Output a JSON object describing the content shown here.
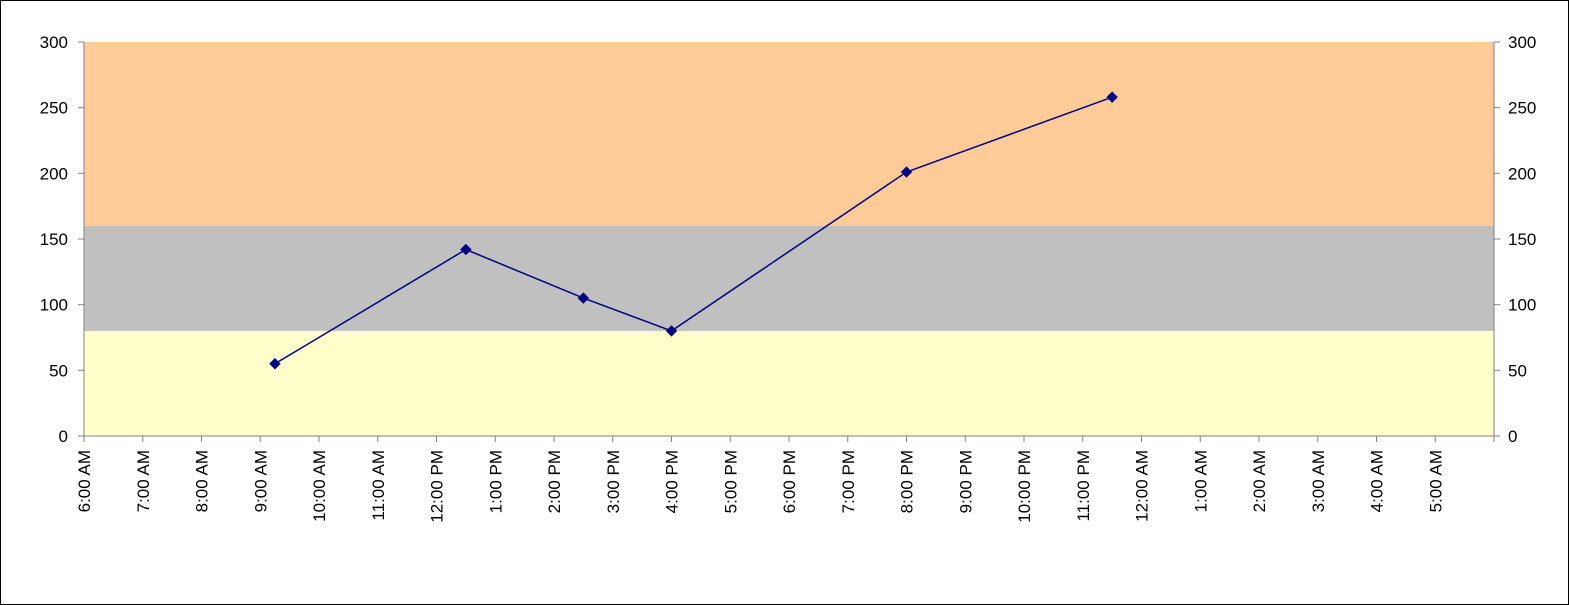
{
  "chart_data": {
    "type": "line",
    "x_ticks": [
      "6:00 AM",
      "7:00 AM",
      "8:00 AM",
      "9:00 AM",
      "10:00 AM",
      "11:00 AM",
      "12:00 PM",
      "1:00 PM",
      "2:00 PM",
      "3:00 PM",
      "4:00 PM",
      "5:00 PM",
      "6:00 PM",
      "7:00 PM",
      "8:00 PM",
      "9:00 PM",
      "10:00 PM",
      "11:00 PM",
      "12:00 AM",
      "1:00 AM",
      "2:00 AM",
      "3:00 AM",
      "4:00 AM",
      "5:00 AM"
    ],
    "xlim": [
      "6:00 AM",
      "6:00 AM (next day)"
    ],
    "ylim": [
      0,
      300
    ],
    "y_ticks": [
      0,
      50,
      100,
      150,
      200,
      250,
      300
    ],
    "secondary_y_ticks": [
      0,
      50,
      100,
      150,
      200,
      250,
      300
    ],
    "series": [
      {
        "color": "#000080",
        "marker": "diamond",
        "x": [
          "9:15 AM",
          "12:30 PM",
          "2:30 PM",
          "4:00 PM",
          "8:00 PM",
          "11:30 PM"
        ],
        "y": [
          55,
          142,
          105,
          80,
          201,
          258
        ]
      }
    ],
    "bands": [
      {
        "from": 0,
        "to": 80,
        "color": "#FFFFCC"
      },
      {
        "from": 80,
        "to": 160,
        "color": "#C0C0C0"
      },
      {
        "from": 160,
        "to": 300,
        "color": "#FFCC99"
      }
    ],
    "grid": false,
    "legend": "none"
  }
}
